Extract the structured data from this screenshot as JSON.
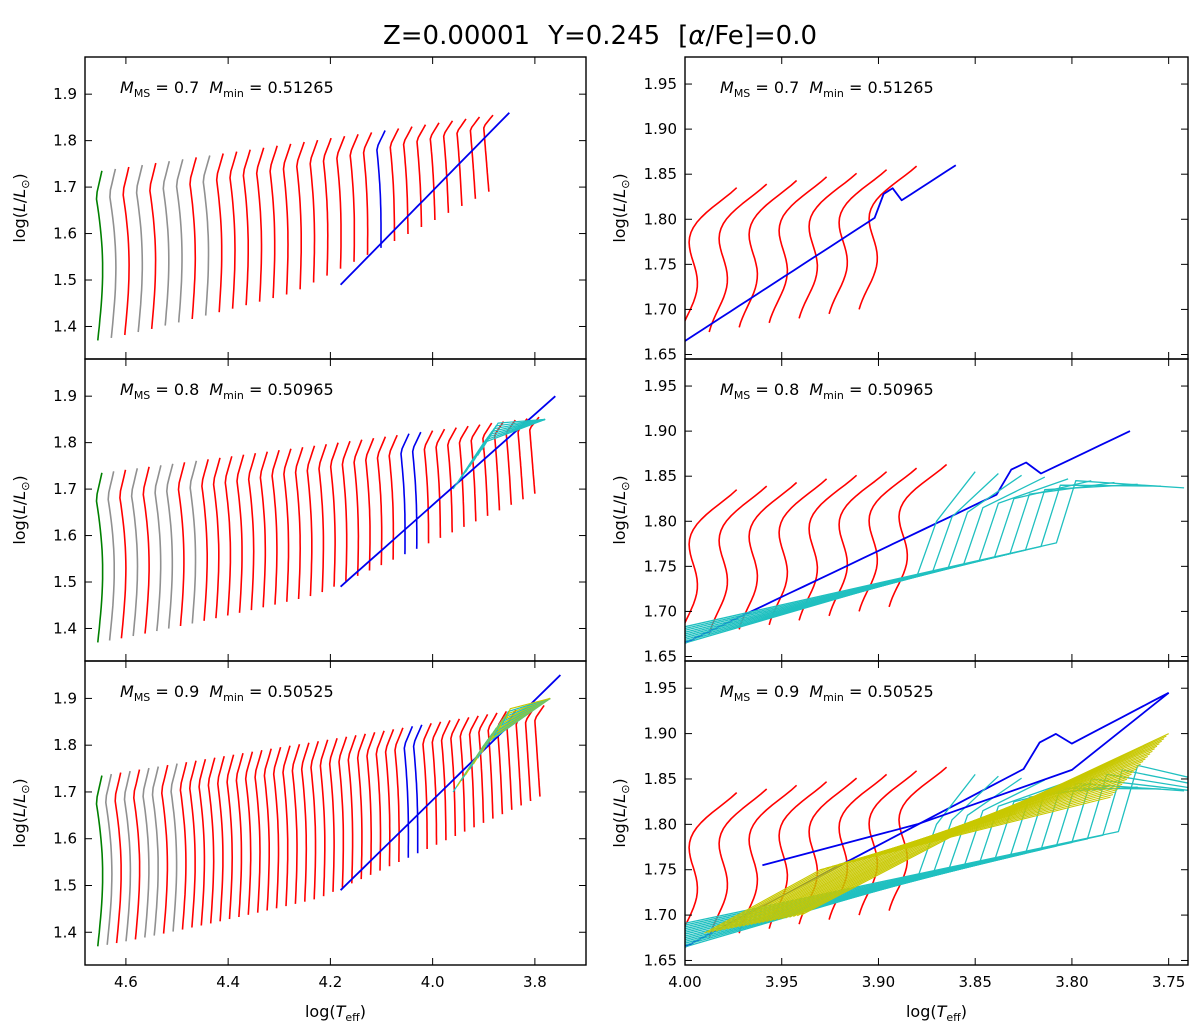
{
  "title_parts": {
    "z": "Z=0.00001",
    "y": "Y=0.245",
    "alpha_pre": "[",
    "alpha_sym": "α",
    "alpha_post": "/Fe]=0.0"
  },
  "ylabel_parts": {
    "pre": "log(",
    "L": "L",
    "slash": "/",
    "L2": "L",
    "sun": "⊙",
    "post": ")"
  },
  "xlabel_parts": {
    "pre": "log(",
    "T": "T",
    "sub": "eff",
    "post": ")"
  },
  "colors": {
    "green": "#008000",
    "gray": "#909090",
    "red": "#ff0000",
    "blue": "#0000ee",
    "cyan": "#20c0c0",
    "yellow": "#c8c800"
  },
  "chart_data": [
    {
      "type": "line",
      "panel": "top-left",
      "mass_ms": "0.7",
      "mass_min": "0.51265",
      "xlim": [
        4.68,
        3.7
      ],
      "ylim": [
        1.33,
        1.98
      ],
      "xticks": [
        "4.6",
        "4.4",
        "4.2",
        "4.0",
        "3.8"
      ],
      "yticks": [
        "1.4",
        "1.5",
        "1.6",
        "1.7",
        "1.8",
        "1.9"
      ],
      "n_tracks": 30,
      "track_max_logL": 1.86,
      "track_max_logTeff": 3.85
    },
    {
      "type": "line",
      "panel": "top-right",
      "mass_ms": "0.7",
      "mass_min": "0.51265",
      "xlim": [
        4.0,
        3.74
      ],
      "ylim": [
        1.645,
        1.98
      ],
      "xticks": [
        "4.00",
        "3.95",
        "3.90",
        "3.85",
        "3.80",
        "3.75"
      ],
      "yticks": [
        "1.65",
        "1.70",
        "1.75",
        "1.80",
        "1.85",
        "1.90",
        "1.95"
      ],
      "n_tracks": 8,
      "track_max_logL": 1.86,
      "track_max_logTeff": 3.86
    },
    {
      "type": "line",
      "panel": "middle-left",
      "mass_ms": "0.8",
      "mass_min": "0.50965",
      "xlim": [
        4.68,
        3.7
      ],
      "ylim": [
        1.33,
        1.98
      ],
      "xticks": [
        "4.6",
        "4.4",
        "4.2",
        "4.0",
        "3.8"
      ],
      "yticks": [
        "1.4",
        "1.5",
        "1.6",
        "1.7",
        "1.8",
        "1.9"
      ],
      "n_tracks": 38,
      "track_max_logL": 1.9,
      "track_max_logTeff": 3.76
    },
    {
      "type": "line",
      "panel": "middle-right",
      "mass_ms": "0.8",
      "mass_min": "0.50965",
      "xlim": [
        4.0,
        3.74
      ],
      "ylim": [
        1.645,
        1.98
      ],
      "xticks": [
        "4.00",
        "3.95",
        "3.90",
        "3.85",
        "3.80",
        "3.75"
      ],
      "yticks": [
        "1.65",
        "1.70",
        "1.75",
        "1.80",
        "1.85",
        "1.90",
        "1.95"
      ],
      "n_tracks": 18,
      "track_max_logL": 1.9,
      "track_max_logTeff": 3.77
    },
    {
      "type": "line",
      "panel": "bottom-left",
      "mass_ms": "0.9",
      "mass_min": "0.50525",
      "xlim": [
        4.68,
        3.7
      ],
      "ylim": [
        1.33,
        1.98
      ],
      "xticks": [
        "4.6",
        "4.4",
        "4.2",
        "4.0",
        "3.8"
      ],
      "yticks": [
        "1.4",
        "1.5",
        "1.6",
        "1.7",
        "1.8",
        "1.9"
      ],
      "n_tracks": 48,
      "track_max_logL": 1.95,
      "track_max_logTeff": 3.75
    },
    {
      "type": "line",
      "panel": "bottom-right",
      "mass_ms": "0.9",
      "mass_min": "0.50525",
      "xlim": [
        4.0,
        3.74
      ],
      "ylim": [
        1.645,
        1.98
      ],
      "xticks": [
        "4.00",
        "3.95",
        "3.90",
        "3.85",
        "3.80",
        "3.75"
      ],
      "yticks": [
        "1.65",
        "1.70",
        "1.75",
        "1.80",
        "1.85",
        "1.90",
        "1.95"
      ],
      "n_tracks": 45,
      "track_max_logL": 1.945,
      "track_max_logTeff": 3.75
    }
  ]
}
